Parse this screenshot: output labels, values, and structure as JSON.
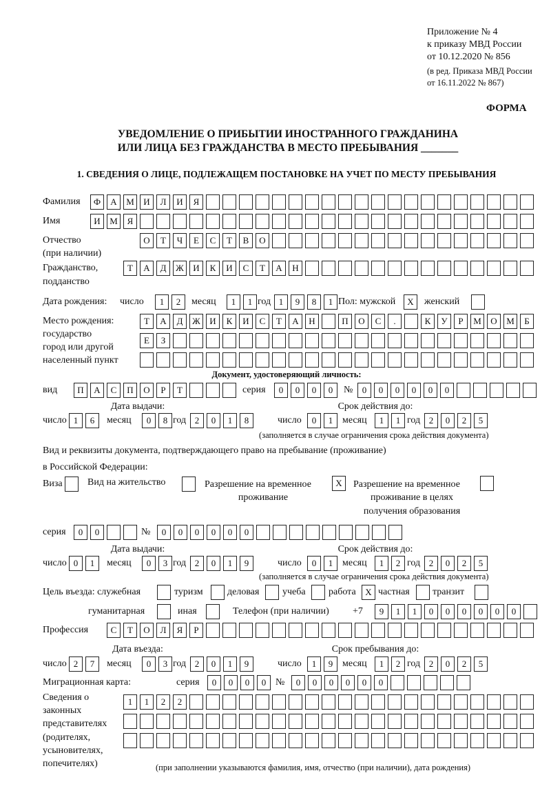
{
  "header": {
    "annex": "Приложение № 4",
    "order": "к приказу МВД России",
    "order_date": "от 10.12.2020 № 856",
    "edit1": "(в ред. Приказа МВД России",
    "edit2": "от 16.11.2022 № 867)",
    "form_label": "ФОРМА",
    "title1": "УВЕДОМЛЕНИЕ О ПРИБЫТИИ ИНОСТРАННОГО ГРАЖДАНИНА",
    "title2": "ИЛИ ЛИЦА БЕЗ ГРАЖДАНСТВА В МЕСТО ПРЕБЫВАНИЯ _______",
    "section1": "1. СВЕДЕНИЯ О ЛИЦЕ, ПОДЛЕЖАЩЕМ ПОСТАНОВКЕ НА УЧЕТ ПО МЕСТУ ПРЕБЫВАНИЯ"
  },
  "labels": {
    "surname": "Фамилия",
    "name": "Имя",
    "patronymic": "Отчество",
    "patronymic_note": "(при наличии)",
    "citizenship1": "Гражданство,",
    "citizenship2": "подданство",
    "birth_date": "Дата рождения:",
    "day": "число",
    "month": "месяц",
    "year": "год",
    "sex": "Пол: мужской",
    "female": "женский",
    "birth_place1": "Место рождения:",
    "birth_place2": "государство",
    "birth_place3": "город или другой",
    "birth_place4": "населенный пункт",
    "id_doc": "Документ, удостоверяющий личность:",
    "kind": "вид",
    "series": "серия",
    "number": "№",
    "issue_date": "Дата выдачи:",
    "valid_until": "Срок действия до:",
    "validity_note": "(заполняется в случае ограничения срока действия документа)",
    "stay_doc1": "Вид и реквизиты документа, подтверждающего право на пребывание (проживание)",
    "stay_doc2": "в Российской Федерации:",
    "visa": "Виза",
    "residence_permit": "Вид на жительство",
    "temp_permit1": "Разрешение на временное",
    "temp_permit2": "проживание",
    "edu_permit1": "Разрешение на временное",
    "edu_permit2": "проживание в целях",
    "edu_permit3": "получения образования",
    "purpose": "Цель въезда: служебная",
    "tourism": "туризм",
    "business": "деловая",
    "study": "учеба",
    "work": "работа",
    "private": "частная",
    "transit": "транзит",
    "humanitarian": "гуманитарная",
    "other": "иная",
    "phone": "Телефон (при наличии)",
    "phone_prefix": "+7",
    "profession": "Профессия",
    "entry_date": "Дата въезда:",
    "stay_until": "Срок пребывания до:",
    "migration_card": "Миграционная карта:",
    "reps1": "Сведения о",
    "reps2": "законных",
    "reps3": "представителях",
    "reps4": "(родителях,",
    "reps5": "усыновителях,",
    "reps6": "попечителях)",
    "reps_note": "(при заполнении указываются фамилия, имя, отчество (при наличии), дата рождения)"
  },
  "fields": {
    "surname": [
      "Ф",
      "А",
      "М",
      "И",
      "Л",
      "И",
      "Я"
    ],
    "name": [
      "И",
      "М",
      "Я"
    ],
    "patronymic": [
      "О",
      "Т",
      "Ч",
      "Е",
      "С",
      "Т",
      "В",
      "О"
    ],
    "citizenship": [
      "Т",
      "А",
      "Д",
      "Ж",
      "И",
      "К",
      "И",
      "С",
      "Т",
      "А",
      "Н"
    ],
    "birth_day": [
      "1",
      "2"
    ],
    "birth_month": [
      "1",
      "1"
    ],
    "birth_year": [
      "1",
      "9",
      "8",
      "1"
    ],
    "sex_male": [
      "X"
    ],
    "sex_female": [],
    "birth_place_1": [
      "Т",
      "А",
      "Д",
      "Ж",
      "И",
      "К",
      "И",
      "С",
      "Т",
      "А",
      "Н",
      "",
      "П",
      "О",
      "С",
      ".",
      "",
      "К",
      "У",
      "Р",
      "М",
      "О",
      "М",
      "Б"
    ],
    "birth_place_2": [
      "Е",
      "З"
    ],
    "birth_place_3": [],
    "id_kind": [
      "П",
      "А",
      "С",
      "П",
      "О",
      "Р",
      "Т"
    ],
    "id_series": [
      "0",
      "0",
      "0",
      "0"
    ],
    "id_number": [
      "0",
      "0",
      "0",
      "0",
      "0",
      "0"
    ],
    "id_issue_day": [
      "1",
      "6"
    ],
    "id_issue_month": [
      "0",
      "8"
    ],
    "id_issue_year": [
      "2",
      "0",
      "1",
      "8"
    ],
    "id_valid_day": [
      "0",
      "1"
    ],
    "id_valid_month": [
      "1",
      "1"
    ],
    "id_valid_year": [
      "2",
      "0",
      "2",
      "5"
    ],
    "visa": [],
    "residence_permit": [],
    "temp_permit": [
      "X"
    ],
    "edu_permit": [],
    "stay_series": [
      "0",
      "0"
    ],
    "stay_number": [
      "0",
      "0",
      "0",
      "0",
      "0",
      "0"
    ],
    "stay_issue_day": [
      "0",
      "1"
    ],
    "stay_issue_month": [
      "0",
      "3"
    ],
    "stay_issue_year": [
      "2",
      "0",
      "1",
      "9"
    ],
    "stay_valid_day": [
      "0",
      "1"
    ],
    "stay_valid_month": [
      "1",
      "2"
    ],
    "stay_valid_year": [
      "2",
      "0",
      "2",
      "5"
    ],
    "purpose_official": [],
    "purpose_tourism": [],
    "purpose_business": [],
    "purpose_study": [],
    "purpose_work": [
      "X"
    ],
    "purpose_private": [],
    "purpose_transit": [],
    "purpose_humanitarian": [],
    "purpose_other": [],
    "phone": [
      "9",
      "1",
      "1",
      "0",
      "0",
      "0",
      "0",
      "0",
      "0"
    ],
    "profession": [
      "С",
      "Т",
      "О",
      "Л",
      "Я",
      "Р"
    ],
    "entry_day": [
      "2",
      "7"
    ],
    "entry_month": [
      "0",
      "3"
    ],
    "entry_year": [
      "2",
      "0",
      "1",
      "9"
    ],
    "stay_until_day": [
      "1",
      "9"
    ],
    "stay_until_month": [
      "1",
      "2"
    ],
    "stay_until_year": [
      "2",
      "0",
      "2",
      "5"
    ],
    "mig_series": [
      "0",
      "0",
      "0",
      "0"
    ],
    "mig_number": [
      "0",
      "0",
      "0",
      "0",
      "0",
      "0"
    ],
    "reps_1": [
      "1",
      "1",
      "2",
      "2"
    ],
    "reps_2": [],
    "reps_3": []
  }
}
